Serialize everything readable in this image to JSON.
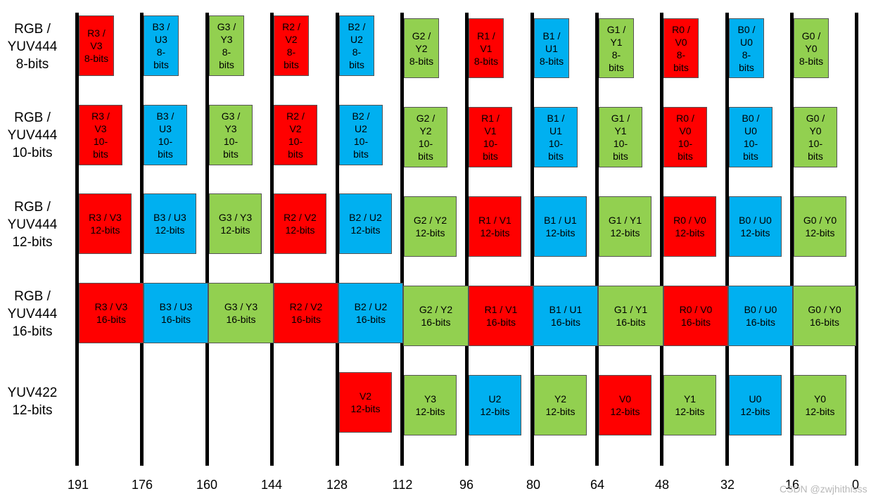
{
  "colors": {
    "red": "#ff0000",
    "blue": "#00b0f0",
    "green": "#92d050",
    "line": "#000000"
  },
  "row_labels": {
    "rgb444_8": "RGB /\nYUV444\n8-bits",
    "rgb444_10": "RGB /\nYUV444\n10-bits",
    "rgb444_12": "RGB /\nYUV444\n12-bits",
    "rgb444_16": "RGB /\nYUV444\n16-bits",
    "yuv422_12": "YUV422\n12-bits"
  },
  "bit_ticks": [
    "191",
    "176",
    "160",
    "144",
    "128",
    "112",
    "96",
    "80",
    "64",
    "48",
    "32",
    "16",
    "0"
  ],
  "rows": {
    "rgb444_8": [
      {
        "label": "R3 /\nV3\n8-bits",
        "color": "red"
      },
      {
        "label": "B3 /\nU3\n8-\nbits",
        "color": "blue"
      },
      {
        "label": "G3 /\nY3\n8-\nbits",
        "color": "green"
      },
      {
        "label": "R2 /\nV2\n8-\nbits",
        "color": "red"
      },
      {
        "label": "B2 /\nU2\n8-\nbits",
        "color": "blue"
      },
      {
        "label": "G2 /\nY2\n8-bits",
        "color": "green"
      },
      {
        "label": "R1 /\nV1\n8-bits",
        "color": "red"
      },
      {
        "label": "B1 /\nU1\n8-bits",
        "color": "blue"
      },
      {
        "label": "G1 /\nY1\n8-\nbits",
        "color": "green"
      },
      {
        "label": "R0 /\nV0\n8-\nbits",
        "color": "red"
      },
      {
        "label": "B0 /\nU0\n8-\nbits",
        "color": "blue"
      },
      {
        "label": "G0 /\nY0\n8-bits",
        "color": "green"
      }
    ],
    "rgb444_10": [
      {
        "label": "R3 /\nV3\n10-\nbits",
        "color": "red"
      },
      {
        "label": "B3 /\nU3\n10-\nbits",
        "color": "blue"
      },
      {
        "label": "G3 /\nY3\n10-\nbits",
        "color": "green"
      },
      {
        "label": "R2 /\nV2\n10-\nbits",
        "color": "red"
      },
      {
        "label": "B2 /\nU2\n10-\nbits",
        "color": "blue"
      },
      {
        "label": "G2 /\nY2\n10-\nbits",
        "color": "green"
      },
      {
        "label": "R1 /\nV1\n10-\nbits",
        "color": "red"
      },
      {
        "label": "B1 /\nU1\n10-\nbits",
        "color": "blue"
      },
      {
        "label": "G1 /\nY1\n10-\nbits",
        "color": "green"
      },
      {
        "label": "R0 /\nV0\n10-\nbits",
        "color": "red"
      },
      {
        "label": "B0 /\nU0\n10-\nbits",
        "color": "blue"
      },
      {
        "label": "G0 /\nY0\n10-\nbits",
        "color": "green"
      }
    ],
    "rgb444_12": [
      {
        "label": "R3 / V3\n12-bits",
        "color": "red"
      },
      {
        "label": "B3 / U3\n12-bits",
        "color": "blue"
      },
      {
        "label": "G3 / Y3\n12-bits",
        "color": "green"
      },
      {
        "label": "R2 / V2\n12-bits",
        "color": "red"
      },
      {
        "label": "B2 / U2\n12-bits",
        "color": "blue"
      },
      {
        "label": "G2 / Y2\n12-bits",
        "color": "green"
      },
      {
        "label": "R1 / V1\n12-bits",
        "color": "red"
      },
      {
        "label": "B1 / U1\n12-bits",
        "color": "blue"
      },
      {
        "label": "G1 / Y1\n12-bits",
        "color": "green"
      },
      {
        "label": "R0 / V0\n12-bits",
        "color": "red"
      },
      {
        "label": "B0 / U0\n12-bits",
        "color": "blue"
      },
      {
        "label": "G0 / Y0\n12-bits",
        "color": "green"
      }
    ],
    "rgb444_16": [
      {
        "label": "R3 / V3\n16-bits",
        "color": "red"
      },
      {
        "label": "B3 / U3\n16-bits",
        "color": "blue"
      },
      {
        "label": "G3 / Y3\n16-bits",
        "color": "green"
      },
      {
        "label": "R2 / V2\n16-bits",
        "color": "red"
      },
      {
        "label": "B2 / U2\n16-bits",
        "color": "blue"
      },
      {
        "label": "G2 / Y2\n16-bits",
        "color": "green"
      },
      {
        "label": "R1 / V1\n16-bits",
        "color": "red"
      },
      {
        "label": "B1 / U1\n16-bits",
        "color": "blue"
      },
      {
        "label": "G1 / Y1\n16-bits",
        "color": "green"
      },
      {
        "label": "R0 / V0\n16-bits",
        "color": "red"
      },
      {
        "label": "B0 / U0\n16-bits",
        "color": "blue"
      },
      {
        "label": "G0 / Y0\n16-bits",
        "color": "green"
      }
    ],
    "yuv422_12": [
      {
        "label": "V2\n12-bits",
        "color": "red"
      },
      {
        "label": "Y3\n12-bits",
        "color": "green"
      },
      {
        "label": "U2\n12-bits",
        "color": "blue"
      },
      {
        "label": "Y2\n12-bits",
        "color": "green"
      },
      {
        "label": "V0\n12-bits",
        "color": "red"
      },
      {
        "label": "Y1\n12-bits",
        "color": "green"
      },
      {
        "label": "U0\n12-bits",
        "color": "blue"
      },
      {
        "label": "Y0\n12-bits",
        "color": "green"
      }
    ]
  },
  "watermark": "CSDN @zwjhithisss"
}
